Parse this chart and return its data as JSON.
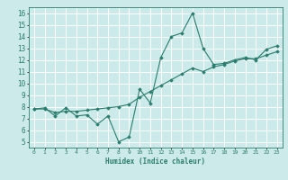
{
  "xlabel": "Humidex (Indice chaleur)",
  "ylabel": "",
  "bg_color": "#cceaea",
  "grid_color": "#ffffff",
  "line_color": "#2a7d6e",
  "marker_color": "#2a7d6e",
  "xlim": [
    -0.5,
    23.5
  ],
  "ylim": [
    4.5,
    16.5
  ],
  "xticks": [
    0,
    1,
    2,
    3,
    4,
    5,
    6,
    7,
    8,
    9,
    10,
    11,
    12,
    13,
    14,
    15,
    16,
    17,
    18,
    19,
    20,
    21,
    22,
    23
  ],
  "yticks": [
    5,
    6,
    7,
    8,
    9,
    10,
    11,
    12,
    13,
    14,
    15,
    16
  ],
  "series1_x": [
    0,
    1,
    2,
    3,
    4,
    5,
    6,
    7,
    8,
    9,
    10,
    11,
    12,
    13,
    14,
    15,
    16,
    17,
    18,
    19,
    20,
    21,
    22,
    23
  ],
  "series1_y": [
    7.8,
    7.9,
    7.2,
    7.9,
    7.2,
    7.3,
    6.5,
    7.2,
    5.0,
    5.4,
    9.5,
    8.3,
    12.2,
    14.0,
    14.3,
    16.0,
    13.0,
    11.6,
    11.7,
    12.0,
    12.2,
    12.0,
    12.9,
    13.2
  ],
  "series2_x": [
    0,
    1,
    2,
    3,
    4,
    5,
    6,
    7,
    8,
    9,
    10,
    11,
    12,
    13,
    14,
    15,
    16,
    17,
    18,
    19,
    20,
    21,
    22,
    23
  ],
  "series2_y": [
    7.8,
    7.8,
    7.5,
    7.6,
    7.6,
    7.7,
    7.8,
    7.9,
    8.0,
    8.2,
    8.8,
    9.3,
    9.8,
    10.3,
    10.8,
    11.3,
    11.0,
    11.4,
    11.6,
    11.9,
    12.1,
    12.1,
    12.4,
    12.7
  ]
}
